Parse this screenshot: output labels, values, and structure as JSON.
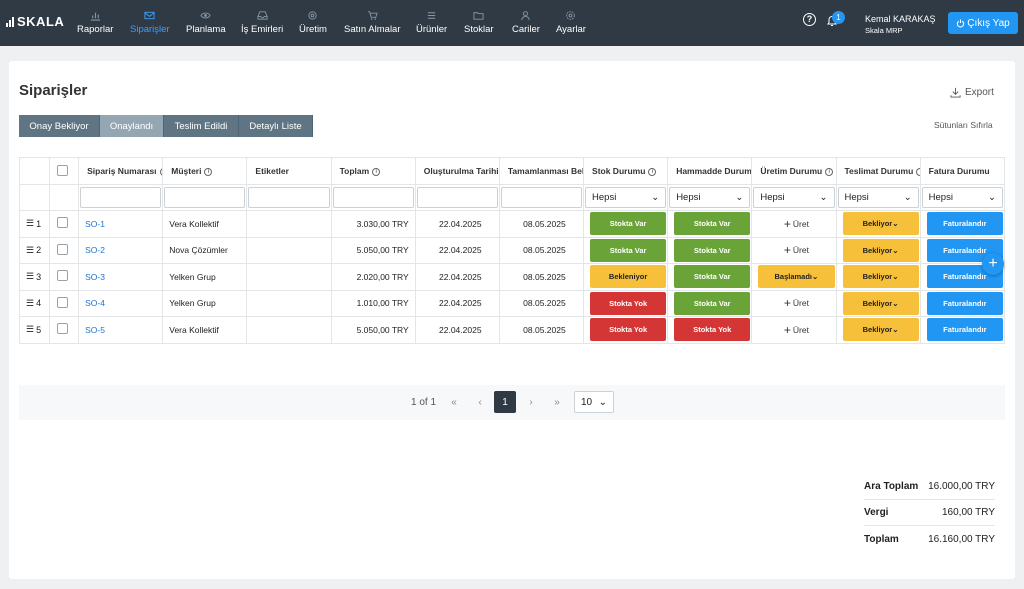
{
  "app": {
    "logo": "SKALA"
  },
  "nav": [
    {
      "label": "Raporlar",
      "icon": "chart-icon",
      "active": false
    },
    {
      "label": "Siparişler",
      "icon": "mail-icon",
      "active": true
    },
    {
      "label": "Planlama",
      "icon": "eye-icon",
      "active": false
    },
    {
      "label": "İş Emirleri",
      "icon": "inbox-icon",
      "active": false
    },
    {
      "label": "Üretim",
      "icon": "gear-icon",
      "active": false
    },
    {
      "label": "Satın Almalar",
      "icon": "cart-icon",
      "active": false
    },
    {
      "label": "Ürünler",
      "icon": "list-icon",
      "active": false
    },
    {
      "label": "Stoklar",
      "icon": "folder-icon",
      "active": false
    },
    {
      "label": "Cariler",
      "icon": "user-icon",
      "active": false
    },
    {
      "label": "Ayarlar",
      "icon": "settings-icon",
      "active": false
    }
  ],
  "header": {
    "notification_count": "1",
    "user_name": "Kemal KARAKAŞ",
    "company": "Skala MRP",
    "logout_label": "Çıkış Yap"
  },
  "page": {
    "title": "Siparişler",
    "export_label": "Export",
    "reset_columns_label": "Sütunları Sıfırla"
  },
  "tabs": [
    {
      "label": "Onay Bekliyor",
      "active": false
    },
    {
      "label": "Onaylandı",
      "active": true
    },
    {
      "label": "Teslim Edildi",
      "active": false
    },
    {
      "label": "Detaylı Liste",
      "active": false
    }
  ],
  "table": {
    "columns": [
      "Sipariş Numarası",
      "Müşteri",
      "Etiketler",
      "Toplam",
      "Oluşturulma Tarihi",
      "Tamamlanması Bek",
      "Stok Durumu",
      "Hammadde Durum",
      "Üretim Durumu",
      "Teslimat Durumu",
      "Fatura Durumu"
    ],
    "filter_all": "Hepsi",
    "rows": [
      {
        "idx": "1",
        "order": "SO-1",
        "customer": "Vera Kollektif",
        "total": "3.030,00 TRY",
        "created": "22.04.2025",
        "due": "08.05.2025",
        "stock": "Stokta Var",
        "stock_c": "green",
        "raw": "Stokta Var",
        "raw_c": "green",
        "prod": "Üret",
        "prod_c": "none",
        "ship": "Bekliyor",
        "invoice": "Faturalandır"
      },
      {
        "idx": "2",
        "order": "SO-2",
        "customer": "Nova Çözümler",
        "total": "5.050,00 TRY",
        "created": "22.04.2025",
        "due": "08.05.2025",
        "stock": "Stokta Var",
        "stock_c": "green",
        "raw": "Stokta Var",
        "raw_c": "green",
        "prod": "Üret",
        "prod_c": "none",
        "ship": "Bekliyor",
        "invoice": "Faturalandır"
      },
      {
        "idx": "3",
        "order": "SO-3",
        "customer": "Yelken Grup",
        "total": "2.020,00 TRY",
        "created": "22.04.2025",
        "due": "08.05.2025",
        "stock": "Bekleniyor",
        "stock_c": "yellow",
        "raw": "Stokta Var",
        "raw_c": "green",
        "prod": "Başlamadı",
        "prod_c": "yellow",
        "ship": "Bekliyor",
        "invoice": "Faturalandır"
      },
      {
        "idx": "4",
        "order": "SO-4",
        "customer": "Yelken Grup",
        "total": "1.010,00 TRY",
        "created": "22.04.2025",
        "due": "08.05.2025",
        "stock": "Stokta Yok",
        "stock_c": "red",
        "raw": "Stokta Var",
        "raw_c": "green",
        "prod": "Üret",
        "prod_c": "none",
        "ship": "Bekliyor",
        "invoice": "Faturalandır"
      },
      {
        "idx": "5",
        "order": "SO-5",
        "customer": "Vera Kollektif",
        "total": "5.050,00 TRY",
        "created": "22.04.2025",
        "due": "08.05.2025",
        "stock": "Stokta Yok",
        "stock_c": "red",
        "raw": "Stokta Yok",
        "raw_c": "red",
        "prod": "Üret",
        "prod_c": "none",
        "ship": "Bekliyor",
        "invoice": "Faturalandır"
      }
    ]
  },
  "pagination": {
    "info": "1 of 1",
    "current": "1",
    "page_size": "10"
  },
  "totals": [
    {
      "label": "Ara Toplam",
      "value": "16.000,00 TRY"
    },
    {
      "label": "Vergi",
      "value": "160,00 TRY"
    },
    {
      "label": "Toplam",
      "value": "16.160,00 TRY"
    }
  ],
  "colors": {
    "nav_bg": "#2f3a45",
    "accent": "#2196f3",
    "green": "#6aa338",
    "red": "#d43636",
    "yellow": "#f6c03a",
    "tab_bg": "#5f7583",
    "tab_active": "#94a6b2"
  }
}
